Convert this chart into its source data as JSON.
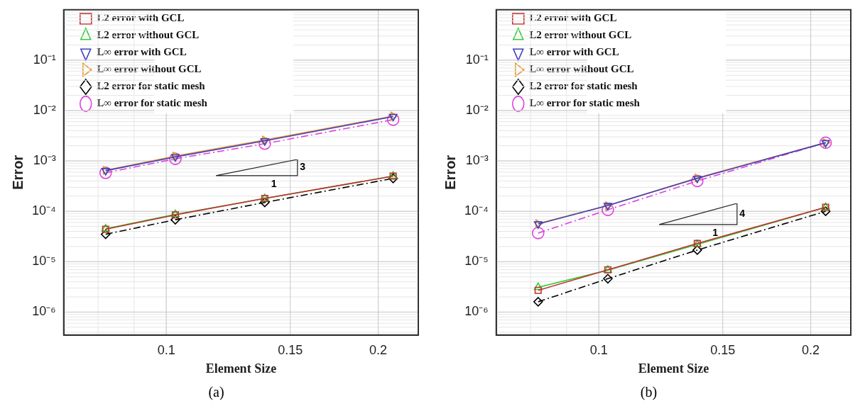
{
  "chart_data": [
    {
      "type": "line",
      "title": "(a)",
      "xlabel": "Element Size",
      "ylabel": "Error",
      "log": "xy",
      "grid": true,
      "legend": "top left",
      "xlim": [
        0.0715,
        0.228
      ],
      "xticks": [
        0.1,
        0.15,
        0.2
      ],
      "ylim": [
        3.5e-07,
        1
      ],
      "yticks": [
        {
          "value": 0.1,
          "label": "10⁻¹"
        },
        {
          "value": 0.01,
          "label": "10⁻²"
        },
        {
          "value": 0.001,
          "label": "10⁻³"
        },
        {
          "value": 0.0001,
          "label": "10⁻⁴"
        },
        {
          "value": 1e-05,
          "label": "10⁻⁵"
        },
        {
          "value": 1e-06,
          "label": "10⁻⁶"
        }
      ],
      "annotations": [
        "3",
        "1"
      ],
      "x": [
        0.082,
        0.103,
        0.138,
        0.21
      ],
      "series": [
        {
          "name": "L2 error with GCL",
          "color": "#c03030",
          "marker": "square",
          "line_style": "solid",
          "values": [
            4.4e-05,
            8.5e-05,
            0.00018,
            0.0005
          ]
        },
        {
          "name": "L2 error without GCL",
          "color": "#33cc33",
          "marker": "triangle",
          "line_style": "solid",
          "values": [
            4.5e-05,
            8.7e-05,
            0.00018,
            0.0005
          ]
        },
        {
          "name": "L∞ error with GCL",
          "color": "#4040c0",
          "marker": "triangle",
          "line_style": "solid",
          "values": [
            0.00064,
            0.0012,
            0.0025,
            0.0076
          ]
        },
        {
          "name": "L∞ error without GCL",
          "color": "#e69a30",
          "marker": "triangle",
          "line_style": "solid",
          "values": [
            0.00065,
            0.00125,
            0.0026,
            0.0078
          ]
        },
        {
          "name": "L2 error for static mesh",
          "color": "#000000",
          "marker": "diamond",
          "line_style": "dashed",
          "values": [
            3.5e-05,
            6.8e-05,
            0.00015,
            0.00045
          ]
        },
        {
          "name": "L∞ error for static mesh",
          "color": "#e040e0",
          "marker": "circle",
          "line_style": "dashed",
          "values": [
            0.00058,
            0.0011,
            0.0022,
            0.0066
          ]
        }
      ]
    },
    {
      "type": "line",
      "title": "(b)",
      "xlabel": "Element Size",
      "ylabel": "Error",
      "log": "xy",
      "grid": true,
      "legend": "top left",
      "xlim": [
        0.0715,
        0.228
      ],
      "xticks": [
        0.1,
        0.15,
        0.2
      ],
      "ylim": [
        3.5e-07,
        1
      ],
      "yticks": [
        {
          "value": 0.1,
          "label": "10⁻¹"
        },
        {
          "value": 0.01,
          "label": "10⁻²"
        },
        {
          "value": 0.001,
          "label": "10⁻³"
        },
        {
          "value": 0.0001,
          "label": "10⁻⁴"
        },
        {
          "value": 1e-05,
          "label": "10⁻⁵"
        },
        {
          "value": 1e-06,
          "label": "10⁻⁶"
        }
      ],
      "annotations": [
        "4",
        "1"
      ],
      "x": [
        0.082,
        0.103,
        0.138,
        0.21
      ],
      "series": [
        {
          "name": "L2 error with GCL",
          "color": "#c03030",
          "marker": "square",
          "line_style": "solid",
          "values": [
            2.7e-06,
            6.9e-06,
            2.3e-05,
            0.00012
          ]
        },
        {
          "name": "L2 error without GCL",
          "color": "#33cc33",
          "marker": "triangle",
          "line_style": "solid",
          "values": [
            3.1e-06,
            6.8e-06,
            2.2e-05,
            0.00012
          ]
        },
        {
          "name": "L∞ error with GCL",
          "color": "#4040c0",
          "marker": "triangle",
          "line_style": "solid",
          "values": [
            5.6e-05,
            0.00013,
            0.00045,
            0.0023
          ]
        },
        {
          "name": "L∞ error without GCL",
          "color": "#e69a30",
          "marker": "triangle",
          "line_style": "solid",
          "values": [
            5.7e-05,
            0.00013,
            0.00046,
            0.0023
          ]
        },
        {
          "name": "L2 error for static mesh",
          "color": "#000000",
          "marker": "diamond",
          "line_style": "dashed",
          "values": [
            1.6e-06,
            4.6e-06,
            1.7e-05,
            0.0001
          ]
        },
        {
          "name": "L∞ error for static mesh",
          "color": "#e040e0",
          "marker": "circle",
          "line_style": "dashed",
          "values": [
            3.7e-05,
            0.000107,
            0.0004,
            0.0023
          ]
        }
      ]
    }
  ]
}
